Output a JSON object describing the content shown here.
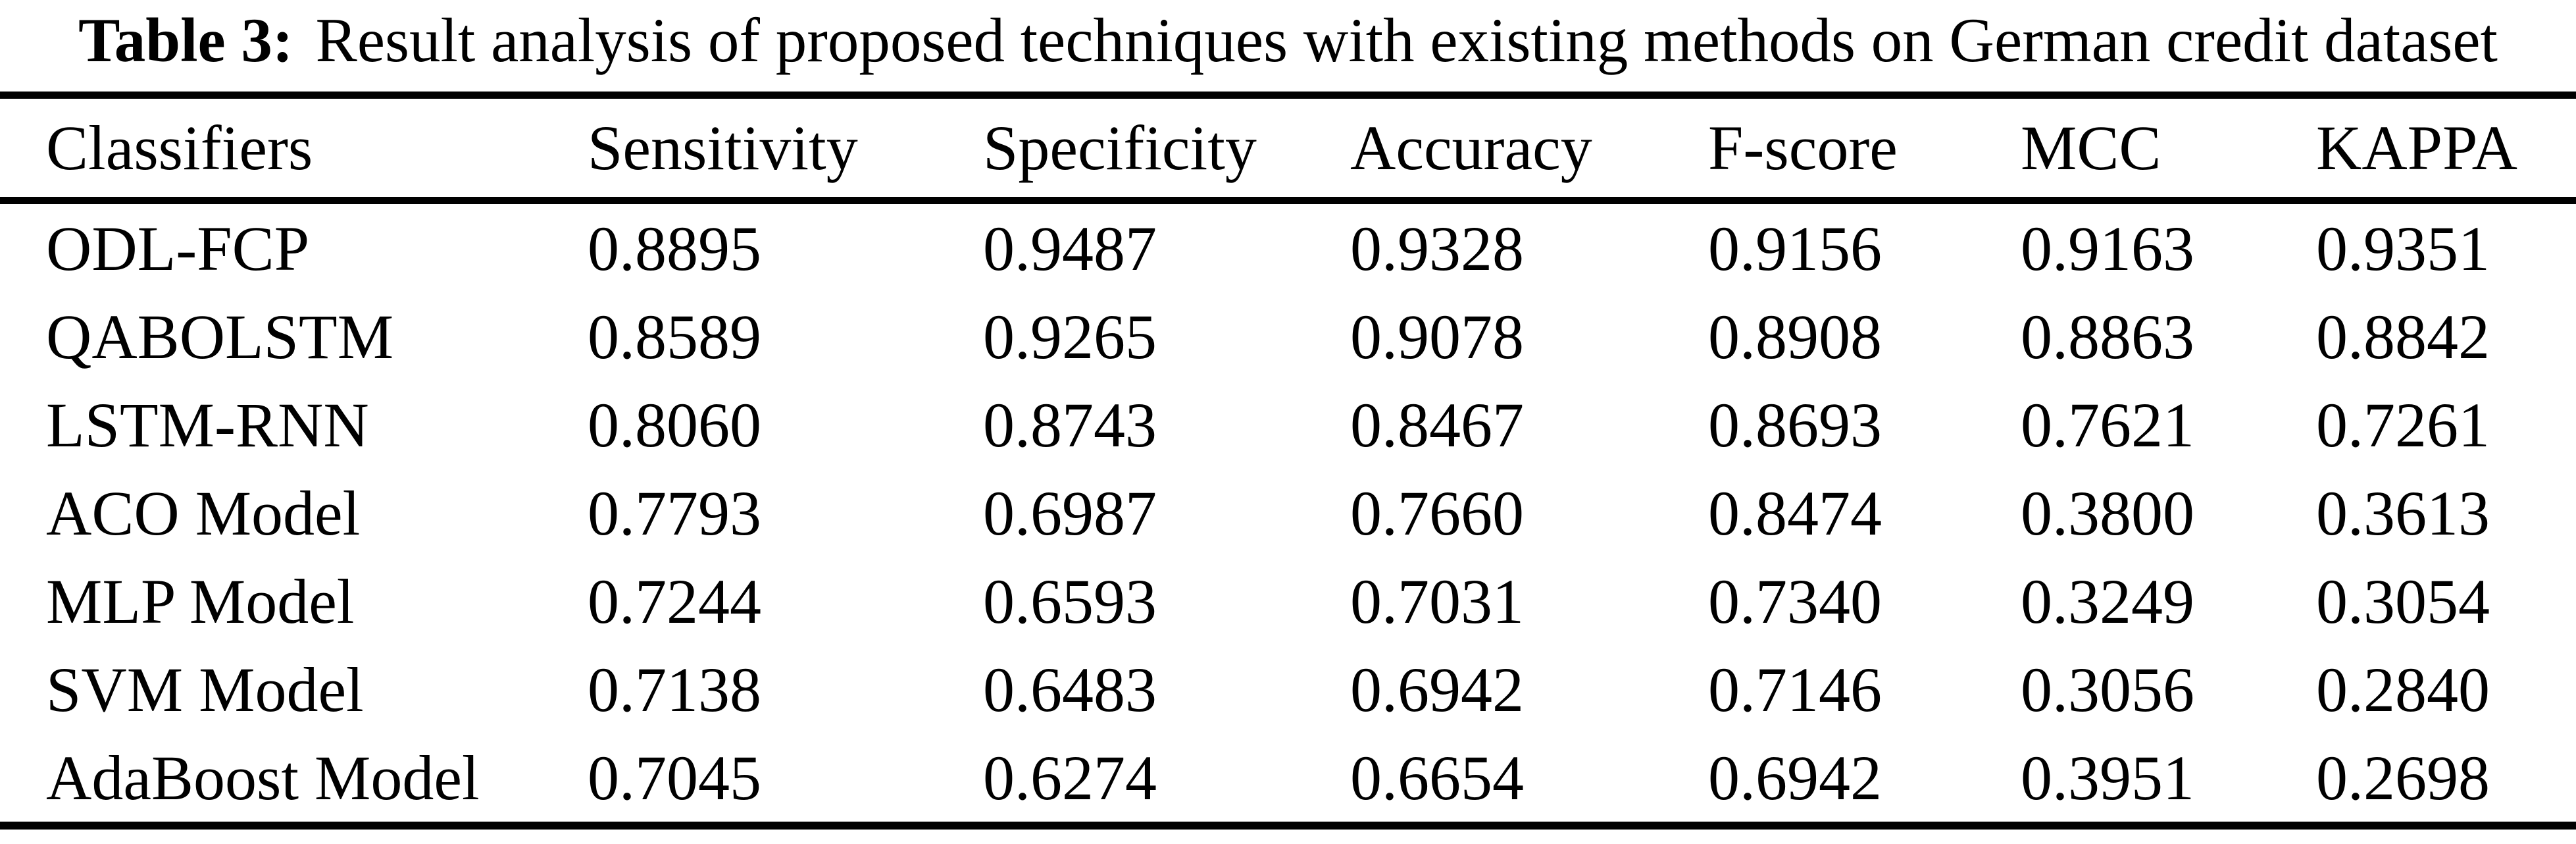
{
  "page": {
    "background_color": "#ffffff",
    "text_color": "#000000"
  },
  "caption": {
    "label": "Table 3:",
    "text": "Result analysis of proposed techniques with existing methods on German credit dataset"
  },
  "table": {
    "columns": [
      "Classifiers",
      "Sensitivity",
      "Specificity",
      "Accuracy",
      "F-score",
      "MCC",
      "KAPPA"
    ],
    "rows": [
      {
        "classifier": "ODL-FCP",
        "values": [
          "0.8895",
          "0.9487",
          "0.9328",
          "0.9156",
          "0.9163",
          "0.9351"
        ]
      },
      {
        "classifier": "QABOLSTM",
        "values": [
          "0.8589",
          "0.9265",
          "0.9078",
          "0.8908",
          "0.8863",
          "0.8842"
        ]
      },
      {
        "classifier": "LSTM-RNN",
        "values": [
          "0.8060",
          "0.8743",
          "0.8467",
          "0.8693",
          "0.7621",
          "0.7261"
        ]
      },
      {
        "classifier": "ACO Model",
        "values": [
          "0.7793",
          "0.6987",
          "0.7660",
          "0.8474",
          "0.3800",
          "0.3613"
        ]
      },
      {
        "classifier": "MLP Model",
        "values": [
          "0.7244",
          "0.6593",
          "0.7031",
          "0.7340",
          "0.3249",
          "0.3054"
        ]
      },
      {
        "classifier": "SVM Model",
        "values": [
          "0.7138",
          "0.6483",
          "0.6942",
          "0.7146",
          "0.3056",
          "0.2840"
        ]
      },
      {
        "classifier": "AdaBoost Model",
        "values": [
          "0.7045",
          "0.6274",
          "0.6654",
          "0.6942",
          "0.3951",
          "0.2698"
        ]
      }
    ]
  },
  "chart_data": {
    "type": "table",
    "title": "Table 3: Result analysis of proposed techniques with existing methods on German credit dataset",
    "columns": [
      "Classifiers",
      "Sensitivity",
      "Specificity",
      "Accuracy",
      "F-score",
      "MCC",
      "KAPPA"
    ],
    "rows": [
      [
        "ODL-FCP",
        0.8895,
        0.9487,
        0.9328,
        0.9156,
        0.9163,
        0.9351
      ],
      [
        "QABOLSTM",
        0.8589,
        0.9265,
        0.9078,
        0.8908,
        0.8863,
        0.8842
      ],
      [
        "LSTM-RNN",
        0.806,
        0.8743,
        0.8467,
        0.8693,
        0.7621,
        0.7261
      ],
      [
        "ACO Model",
        0.7793,
        0.6987,
        0.766,
        0.8474,
        0.38,
        0.3613
      ],
      [
        "MLP Model",
        0.7244,
        0.6593,
        0.7031,
        0.734,
        0.3249,
        0.3054
      ],
      [
        "SVM Model",
        0.7138,
        0.6483,
        0.6942,
        0.7146,
        0.3056,
        0.284
      ],
      [
        "AdaBoost Model",
        0.7045,
        0.6274,
        0.6654,
        0.6942,
        0.3951,
        0.2698
      ]
    ]
  }
}
